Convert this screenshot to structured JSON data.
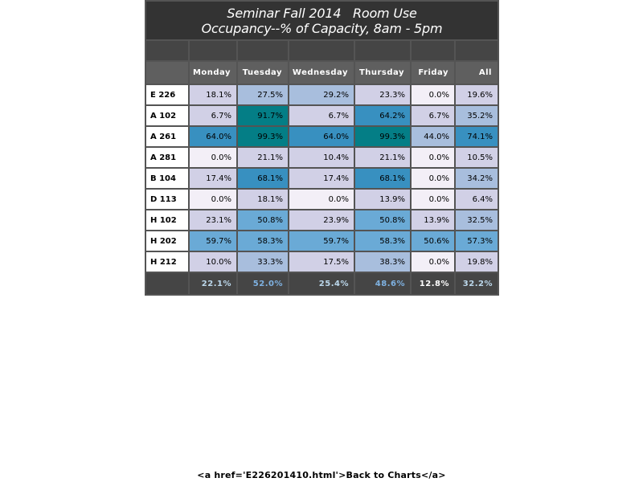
{
  "report": {
    "title_line1": "Seminar Fall 2014   Room Use",
    "title_line2": "Occupancy--% of Capacity, 8am - 5pm"
  },
  "table": {
    "columns": [
      "Monday",
      "Tuesday",
      "Wednesday",
      "Thursday",
      "Friday",
      "All"
    ],
    "rows": [
      {
        "room": "E 226",
        "values": [
          "18.1%",
          "27.5%",
          "29.2%",
          "23.3%",
          "0.0%",
          "19.6%"
        ]
      },
      {
        "room": "A 102",
        "values": [
          "6.7%",
          "91.7%",
          "6.7%",
          "64.2%",
          "6.7%",
          "35.2%"
        ]
      },
      {
        "room": "A 261",
        "values": [
          "64.0%",
          "99.3%",
          "64.0%",
          "99.3%",
          "44.0%",
          "74.1%"
        ]
      },
      {
        "room": "A 281",
        "values": [
          "0.0%",
          "21.1%",
          "10.4%",
          "21.1%",
          "0.0%",
          "10.5%"
        ]
      },
      {
        "room": "B 104",
        "values": [
          "17.4%",
          "68.1%",
          "17.4%",
          "68.1%",
          "0.0%",
          "34.2%"
        ]
      },
      {
        "room": "D 113",
        "values": [
          "0.0%",
          "18.1%",
          "0.0%",
          "13.9%",
          "0.0%",
          "6.4%"
        ]
      },
      {
        "room": "H 102",
        "values": [
          "23.1%",
          "50.8%",
          "23.9%",
          "50.8%",
          "13.9%",
          "32.5%"
        ]
      },
      {
        "room": "H 202",
        "values": [
          "59.7%",
          "58.3%",
          "59.7%",
          "58.3%",
          "50.6%",
          "57.3%"
        ]
      },
      {
        "room": "H 212",
        "values": [
          "10.0%",
          "33.3%",
          "17.5%",
          "38.3%",
          "0.0%",
          "19.8%"
        ]
      }
    ],
    "totals": [
      "22.1%",
      "52.0%",
      "25.4%",
      "48.6%",
      "12.8%",
      "32.2%"
    ]
  },
  "footer": {
    "link_text": "<a href='E226201410.html'>Back to Charts</a>"
  },
  "colors": {
    "title_bg": "#333333",
    "header_bg": "#5f5f5f",
    "band_0": "#f3eff7",
    "band_1": "#d1d0e6",
    "band_2": "#a8bedd",
    "band_3": "#6aaad6",
    "band_4": "#3890c0",
    "band_5": "#047e86",
    "total_text_lo": "#ffffff",
    "total_text_mid": "#bcd8ec",
    "total_text_hi": "#7fb2e2"
  }
}
